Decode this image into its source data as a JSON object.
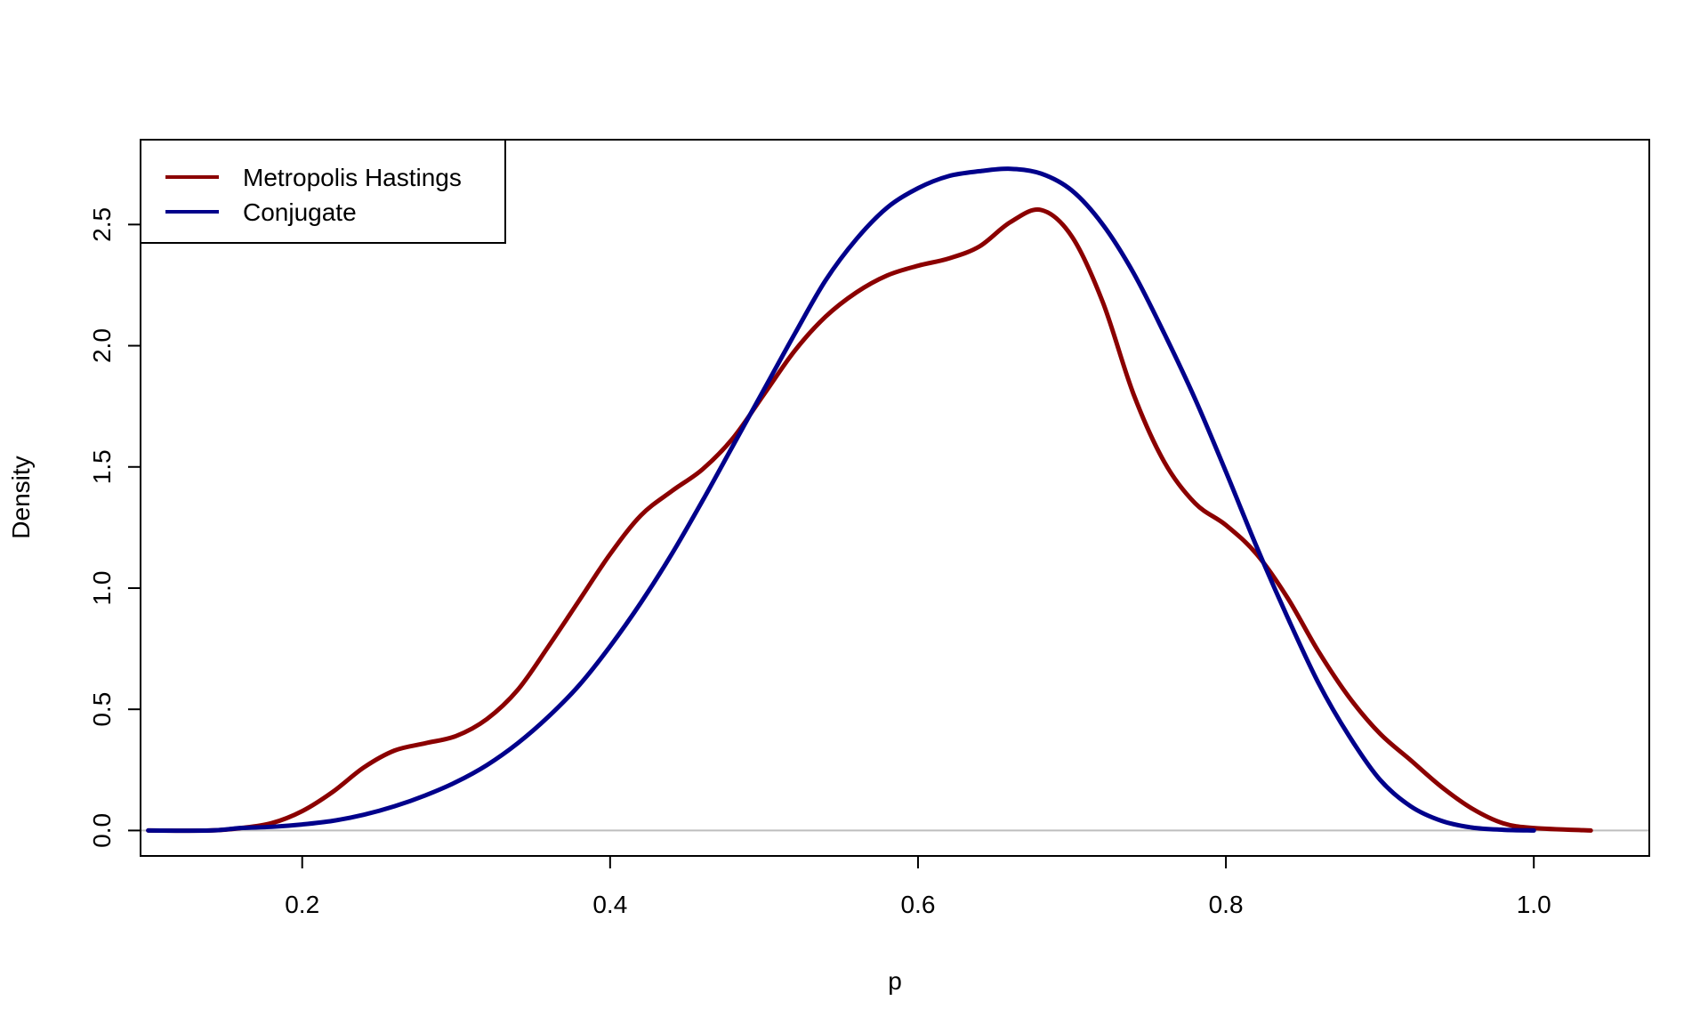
{
  "chart_data": {
    "type": "line",
    "title": "",
    "xlabel": "p",
    "ylabel": "Density",
    "xlim": [
      0.095,
      1.075
    ],
    "ylim": [
      -0.105,
      2.85
    ],
    "xticks": [
      0.2,
      0.4,
      0.6,
      0.8,
      1.0
    ],
    "xtick_labels": [
      "0.2",
      "0.4",
      "0.6",
      "0.8",
      "1.0"
    ],
    "yticks": [
      0.0,
      0.5,
      1.0,
      1.5,
      2.0,
      2.5
    ],
    "ytick_labels": [
      "0.0",
      "0.5",
      "1.0",
      "1.5",
      "2.0",
      "2.5"
    ],
    "grid": false,
    "baseline": 0,
    "legend": {
      "position": "top-left",
      "entries": [
        "Metropolis Hastings",
        "Conjugate"
      ]
    },
    "series": [
      {
        "name": "Metropolis Hastings",
        "color": "#8B0000",
        "x": [
          0.1,
          0.14,
          0.16,
          0.18,
          0.2,
          0.22,
          0.24,
          0.26,
          0.28,
          0.3,
          0.32,
          0.34,
          0.36,
          0.38,
          0.4,
          0.42,
          0.44,
          0.46,
          0.48,
          0.5,
          0.52,
          0.54,
          0.56,
          0.58,
          0.6,
          0.62,
          0.64,
          0.66,
          0.68,
          0.7,
          0.72,
          0.74,
          0.76,
          0.78,
          0.8,
          0.82,
          0.84,
          0.86,
          0.88,
          0.9,
          0.92,
          0.94,
          0.96,
          0.98,
          1.0,
          1.037
        ],
        "y": [
          0.0,
          0.0,
          0.01,
          0.03,
          0.08,
          0.16,
          0.26,
          0.33,
          0.36,
          0.39,
          0.46,
          0.58,
          0.76,
          0.95,
          1.14,
          1.3,
          1.4,
          1.49,
          1.62,
          1.8,
          1.98,
          2.12,
          2.22,
          2.29,
          2.33,
          2.36,
          2.41,
          2.51,
          2.56,
          2.45,
          2.18,
          1.8,
          1.52,
          1.35,
          1.26,
          1.14,
          0.96,
          0.74,
          0.55,
          0.4,
          0.29,
          0.18,
          0.09,
          0.03,
          0.01,
          0.0
        ]
      },
      {
        "name": "Conjugate",
        "color": "#00008B",
        "x": [
          0.1,
          0.14,
          0.16,
          0.18,
          0.2,
          0.22,
          0.24,
          0.26,
          0.28,
          0.3,
          0.32,
          0.34,
          0.36,
          0.38,
          0.4,
          0.42,
          0.44,
          0.46,
          0.48,
          0.5,
          0.52,
          0.54,
          0.56,
          0.58,
          0.6,
          0.62,
          0.64,
          0.66,
          0.68,
          0.7,
          0.72,
          0.74,
          0.76,
          0.78,
          0.8,
          0.82,
          0.84,
          0.86,
          0.88,
          0.9,
          0.92,
          0.94,
          0.96,
          0.98,
          1.0
        ],
        "y": [
          0.0,
          0.0,
          0.01,
          0.015,
          0.025,
          0.04,
          0.065,
          0.1,
          0.145,
          0.2,
          0.27,
          0.36,
          0.47,
          0.6,
          0.76,
          0.94,
          1.14,
          1.36,
          1.59,
          1.82,
          2.05,
          2.27,
          2.44,
          2.57,
          2.65,
          2.7,
          2.72,
          2.73,
          2.71,
          2.64,
          2.5,
          2.3,
          2.05,
          1.78,
          1.48,
          1.17,
          0.88,
          0.61,
          0.39,
          0.21,
          0.1,
          0.04,
          0.012,
          0.003,
          0.0
        ]
      }
    ]
  }
}
